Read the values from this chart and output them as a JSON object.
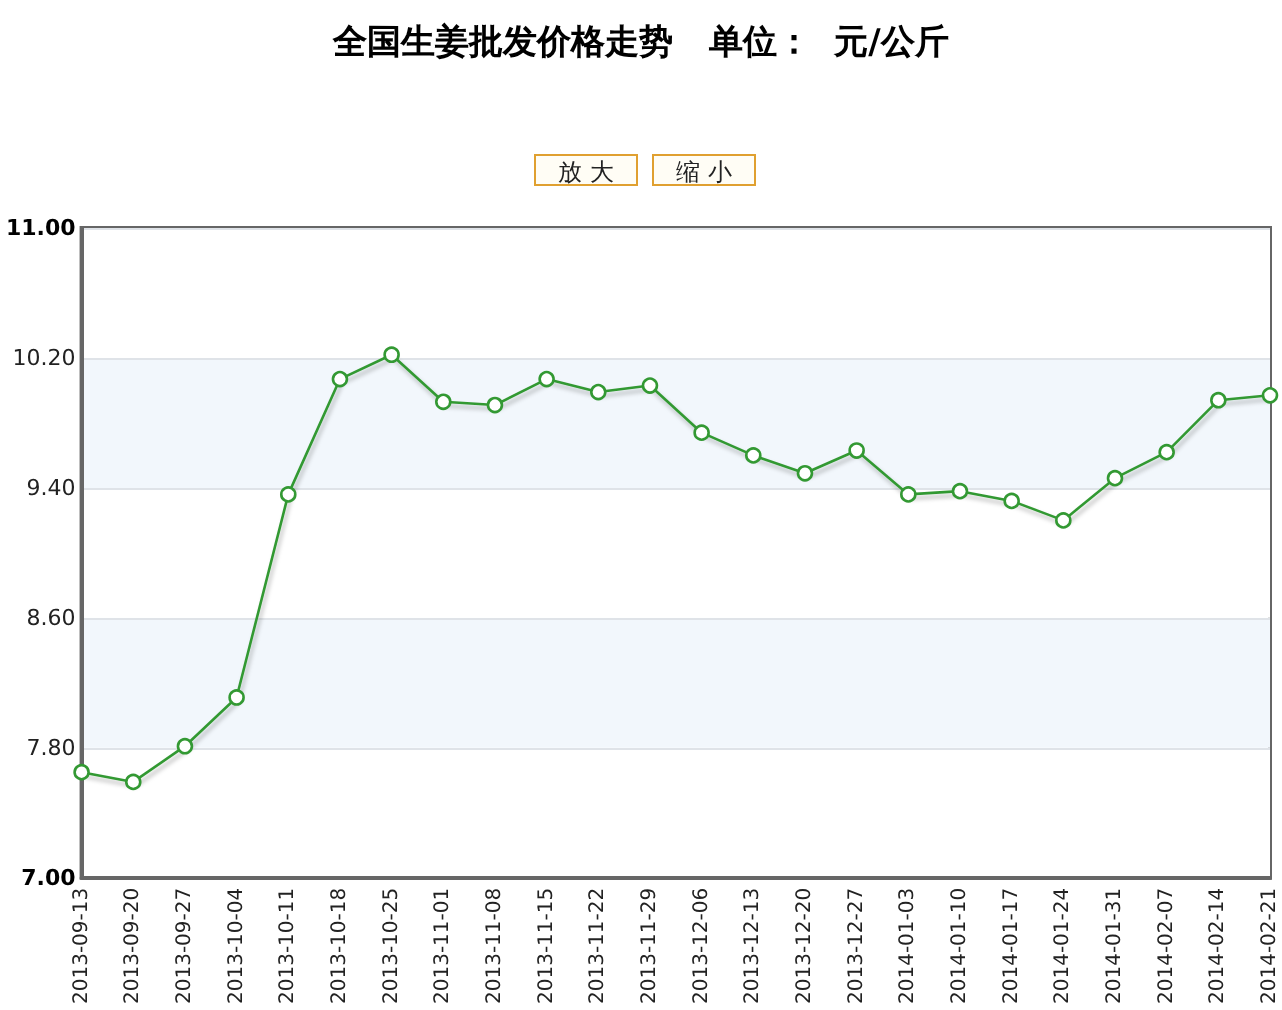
{
  "chart_data": {
    "type": "line",
    "title": "全国生姜批发价格走势   单位：  元/公斤",
    "annotations": [
      "放 大",
      "缩 小"
    ],
    "categories": [
      "2013-09-13",
      "2013-09-20",
      "2013-09-27",
      "2013-10-04",
      "2013-10-11",
      "2013-10-18",
      "2013-10-25",
      "2013-11-01",
      "2013-11-08",
      "2013-11-15",
      "2013-11-22",
      "2013-11-29",
      "2013-12-06",
      "2013-12-13",
      "2013-12-20",
      "2013-12-27",
      "2014-01-03",
      "2014-01-10",
      "2014-01-17",
      "2014-01-24",
      "2014-01-31",
      "2014-02-07",
      "2014-02-14",
      "2014-02-21"
    ],
    "values": [
      7.65,
      7.59,
      7.81,
      8.11,
      9.36,
      10.07,
      10.22,
      9.93,
      9.91,
      10.07,
      9.99,
      10.03,
      9.74,
      9.6,
      9.49,
      9.63,
      9.36,
      9.38,
      9.32,
      9.2,
      9.46,
      9.62,
      9.94,
      9.97
    ],
    "color": "#339933",
    "ylim": [
      7,
      11
    ],
    "yticks": [
      {
        "value": 7,
        "label": "7.00"
      },
      {
        "value": 7.8,
        "label": "7.80"
      },
      {
        "value": 8.6,
        "label": "8.60"
      },
      {
        "value": 9.4,
        "label": "9.40"
      },
      {
        "value": 10.2,
        "label": "10.20"
      },
      {
        "value": 11,
        "label": "11.00"
      }
    ],
    "grid": "y",
    "marker": "circle",
    "line_style": "solid"
  }
}
